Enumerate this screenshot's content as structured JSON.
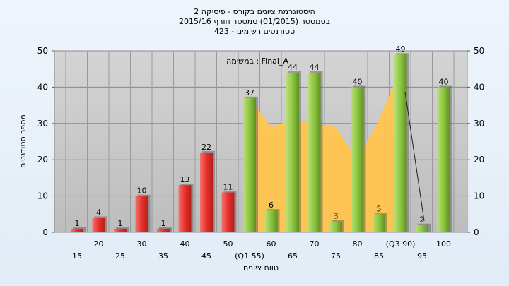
{
  "header": {
    "line1": "היסטוגרמת ציונים בקורס - פיסיקה 2",
    "line2": "בסמסטר  (01/2015)  סמסטר חורף  2015/16",
    "line3": "423 - סטודנטים רשומים"
  },
  "chart_data": {
    "type": "bar",
    "ylabel": "מספר סטודנטים",
    "xlabel": "טווח ציונים",
    "ylim": [
      0,
      50
    ],
    "yticks": [
      0,
      10,
      20,
      30,
      40,
      50
    ],
    "legend_note": "במשימה : Final_A",
    "categories": [
      "15",
      "20",
      "25",
      "30",
      "35",
      "40",
      "45",
      "50",
      "(Q1 55)",
      "60",
      "65",
      "70",
      "75",
      "80",
      "85",
      "(Q3 90)",
      "95",
      "100"
    ],
    "values": [
      1,
      4,
      1,
      10,
      1,
      13,
      22,
      11,
      37,
      6,
      44,
      44,
      3,
      40,
      5,
      49,
      2,
      40
    ],
    "bar_colors": [
      "red",
      "red",
      "red",
      "red",
      "red",
      "red",
      "red",
      "red",
      "green",
      "green",
      "green",
      "green",
      "green",
      "green",
      "green",
      "green",
      "green",
      "green"
    ],
    "area_curve": {
      "x": [
        "(Q1 55)",
        "60",
        "65",
        "70",
        "75",
        "80",
        "85",
        "(Q3 90)"
      ],
      "values": [
        37,
        29,
        31,
        30,
        29,
        20,
        31,
        45
      ]
    },
    "grid": true,
    "colors": {
      "red": "#e8403c",
      "green": "#8cc63f",
      "area": "#ffc44d",
      "plot_bg": "#c8c8c8"
    }
  }
}
